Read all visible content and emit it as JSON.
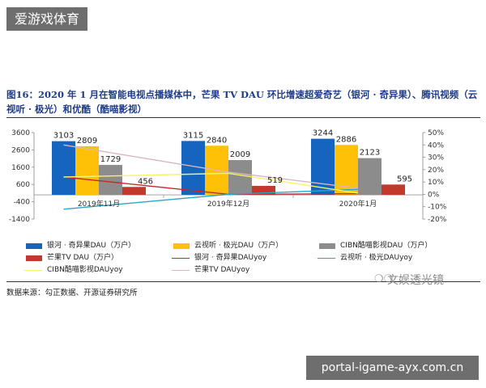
{
  "banner": {
    "text": "爱游戏体育"
  },
  "figure": {
    "title": "图16：2020 年 1 月在智能电视点播媒体中，芒果 TV DAU 环比增速超爱奇艺（银河 · 奇异果）、腾讯视频（云视听 · 极光）和优酷（酷喵影视）",
    "source": "数据来源：勾正数据、开源证券研究所",
    "watermark": "文娱透光镜",
    "watermark_icon": "chat-bubbles-icon"
  },
  "footer": {
    "text": "portal-igame-ayx.com.cn"
  },
  "chart_data": {
    "type": "bar",
    "categories": [
      "2019年11月",
      "2019年12月",
      "2020年1月"
    ],
    "y_left": {
      "ticks": [
        "3600",
        "2600",
        "1600",
        "600",
        "-400",
        "-1400"
      ],
      "range": [
        -1400,
        3600
      ]
    },
    "y_right": {
      "ticks": [
        "50%",
        "40%",
        "30%",
        "20%",
        "10%",
        "0%",
        "-10%",
        "-20%"
      ],
      "range": [
        -20,
        50
      ]
    },
    "bar_series": [
      {
        "name": "银河 · 奇异果DAU（万户）",
        "color": "#1565c0",
        "values": [
          3103,
          3115,
          3244
        ]
      },
      {
        "name": "云视听 · 极光DAU（万户）",
        "color": "#ffc107",
        "values": [
          2809,
          2840,
          2886
        ]
      },
      {
        "name": "CIBN酷喵影视DAU（万户）",
        "color": "#8c8c8c",
        "values": [
          1729,
          2009,
          2123
        ]
      },
      {
        "name": "芒果TV DAU（万户）",
        "color": "#c0392b",
        "values": [
          456,
          519,
          595
        ]
      }
    ],
    "line_series": [
      {
        "name": "银河 · 奇异果DAUyoy",
        "color": "#c62828",
        "values": [
          14,
          0,
          0.5
        ]
      },
      {
        "name": "云视听 · 极光DAUyoy",
        "color": "#26a6c8",
        "values": [
          -12,
          0,
          4
        ]
      },
      {
        "name": "CIBN酷喵影视DAUyoy",
        "color": "#f5f26a",
        "values": [
          14,
          17,
          1
        ]
      },
      {
        "name": "芒果TV DAUyoy",
        "color": "#d7b7bd",
        "values": [
          40,
          18,
          5
        ]
      }
    ],
    "legend": {
      "placement": "bottom",
      "columns": 3
    }
  }
}
